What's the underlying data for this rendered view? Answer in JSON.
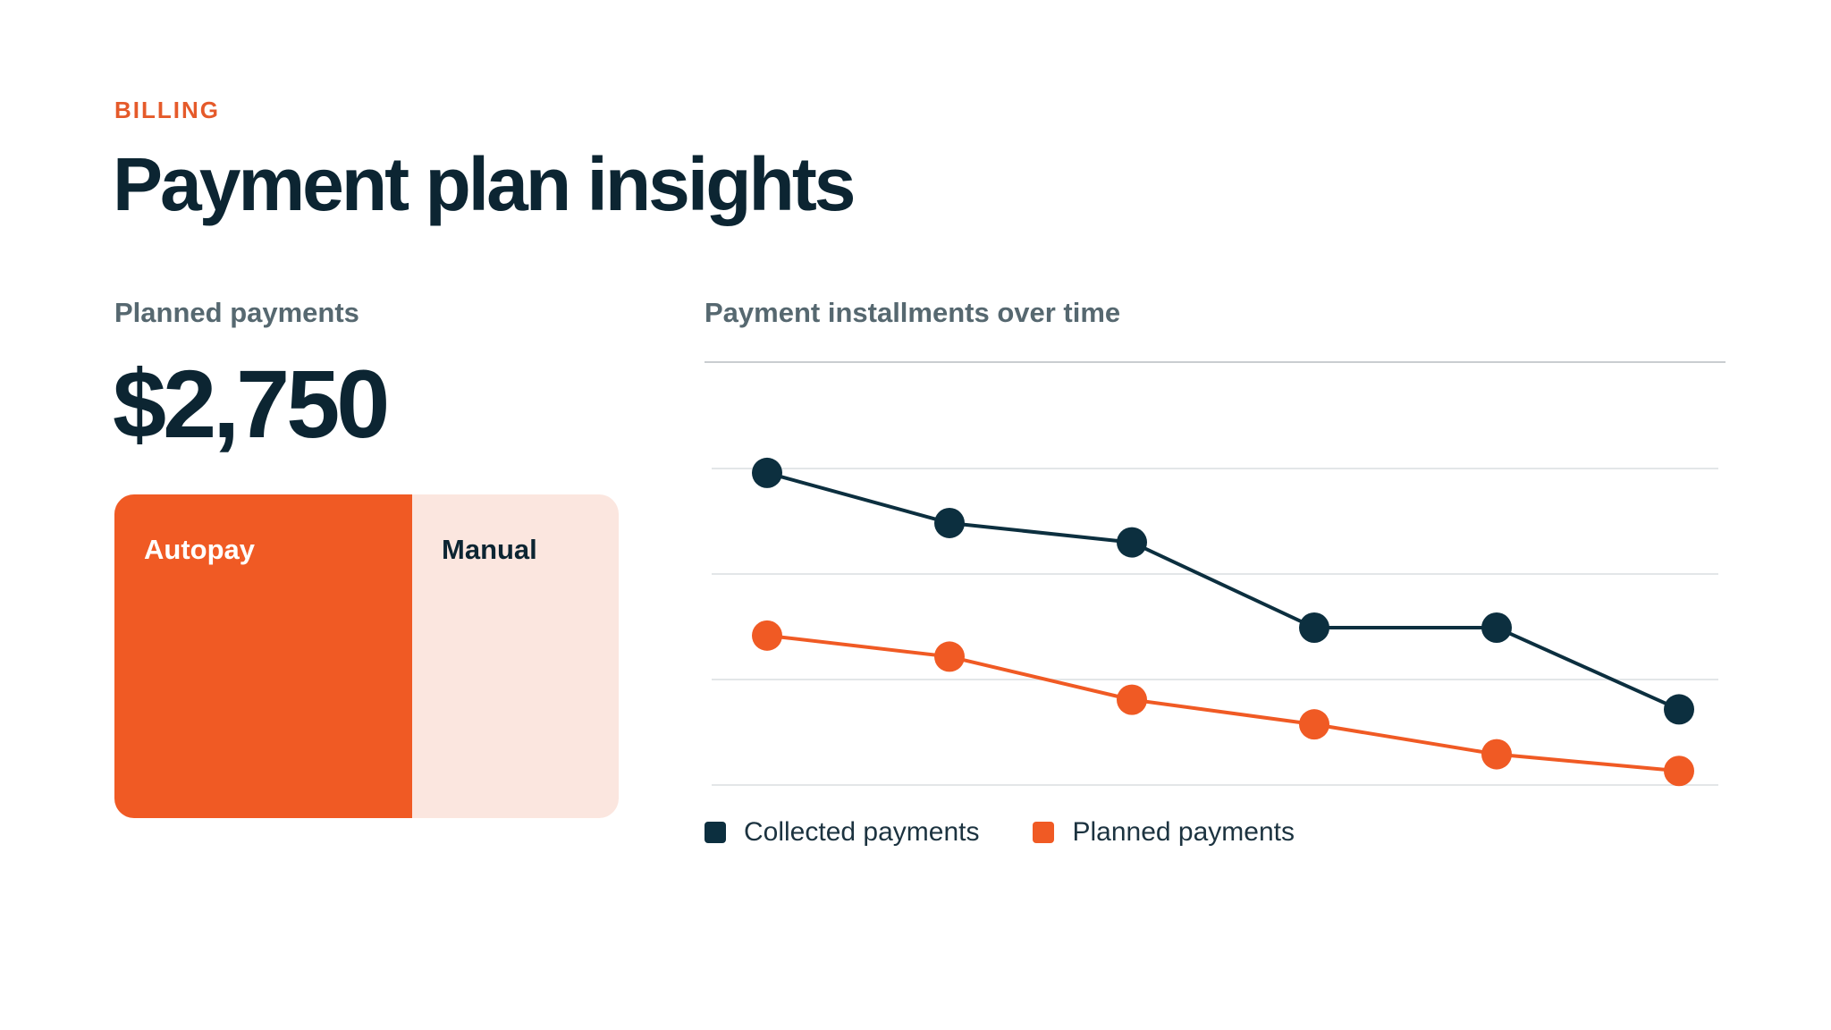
{
  "header": {
    "eyebrow": "BILLING",
    "title": "Payment plan insights"
  },
  "summary": {
    "label": "Planned payments",
    "value": "$2,750",
    "split": {
      "autopay_label": "Autopay",
      "manual_label": "Manual",
      "autopay_fraction": 0.59,
      "autopay_color": "#f05a24",
      "manual_color": "#fbe6df"
    }
  },
  "colors": {
    "accent": "#e55a2a",
    "ink": "#0c2532",
    "muted": "#566870"
  },
  "chart_data": {
    "type": "line",
    "title": "Payment installments over time",
    "xlabel": "",
    "ylabel": "",
    "x": [
      1,
      2,
      3,
      4,
      5,
      6
    ],
    "ylim": [
      0,
      4.8
    ],
    "grid": true,
    "legend_position": "bottom-left",
    "series": [
      {
        "name": "Collected payments",
        "color": "#0c2f3f",
        "values": [
          3.55,
          2.98,
          2.76,
          1.79,
          1.79,
          0.86
        ]
      },
      {
        "name": "Planned payments",
        "color": "#f05a24",
        "values": [
          1.7,
          1.46,
          0.97,
          0.69,
          0.35,
          0.16
        ]
      }
    ]
  }
}
